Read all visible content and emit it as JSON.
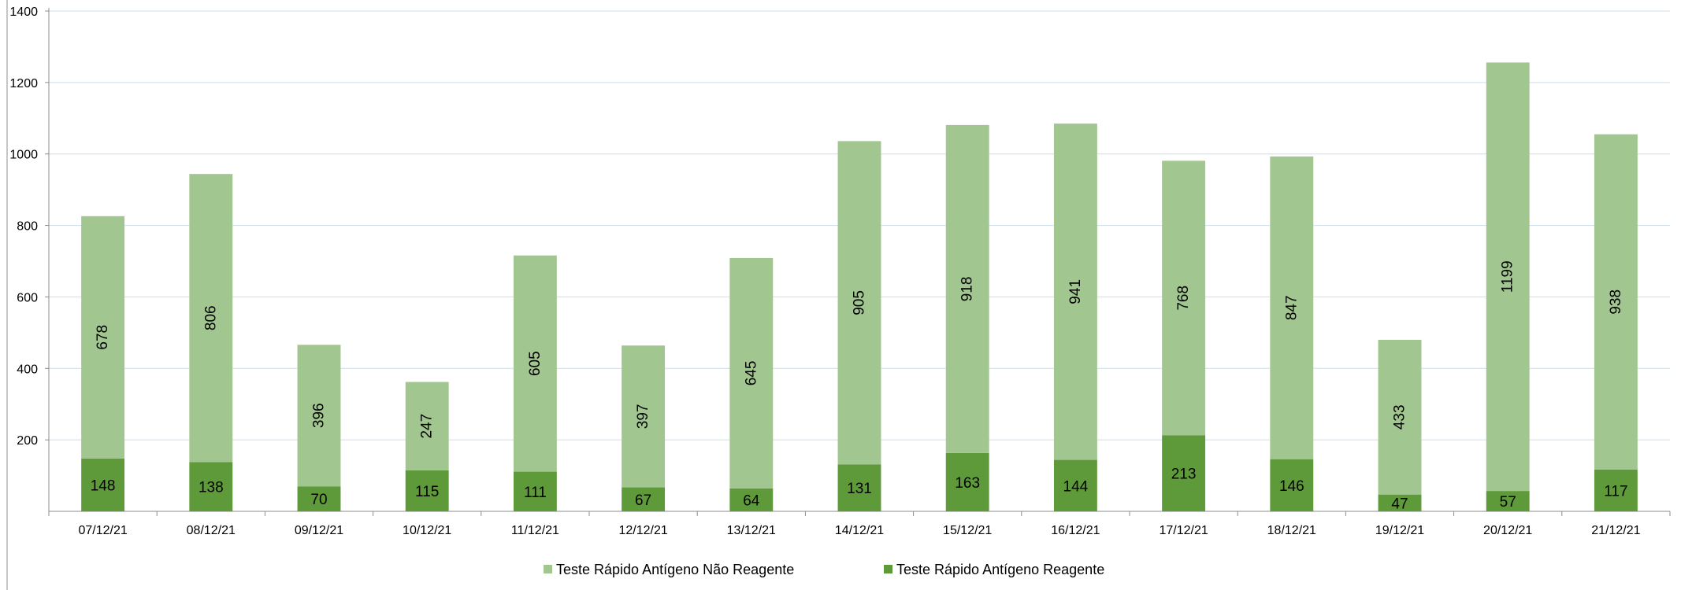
{
  "chart_data": {
    "type": "bar",
    "stacked": true,
    "categories": [
      "07/12/21",
      "08/12/21",
      "09/12/21",
      "10/12/21",
      "11/12/21",
      "12/12/21",
      "13/12/21",
      "14/12/21",
      "15/12/21",
      "16/12/21",
      "17/12/21",
      "18/12/21",
      "19/12/21",
      "20/12/21",
      "21/12/21"
    ],
    "series": [
      {
        "name": "Teste Rápido Antígeno Reagente",
        "color": "#5e9a3a",
        "values": [
          148,
          138,
          70,
          115,
          111,
          67,
          64,
          131,
          163,
          144,
          213,
          146,
          47,
          57,
          117
        ]
      },
      {
        "name": "Teste Rápido Antígeno Não Reagente",
        "color": "#a2c68f",
        "values": [
          678,
          806,
          396,
          247,
          605,
          397,
          645,
          905,
          918,
          941,
          768,
          847,
          433,
          1199,
          938
        ]
      }
    ],
    "legend_order": [
      "Teste Rápido Antígeno Não Reagente",
      "Teste Rápido Antígeno Reagente"
    ],
    "yticks": [
      "1400",
      "1200",
      "1000",
      "800",
      "600",
      "400",
      "200"
    ],
    "ylim": [
      0,
      1400
    ],
    "grid": true,
    "legend_position": "bottom"
  }
}
